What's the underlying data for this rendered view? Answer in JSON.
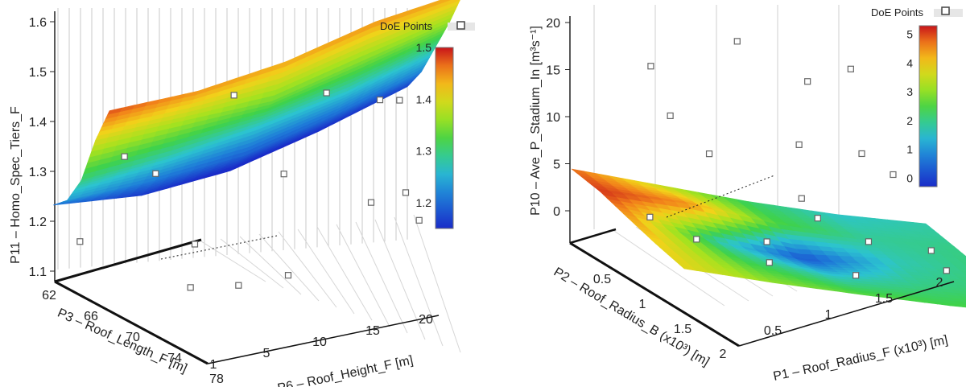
{
  "chart_data": [
    {
      "type": "surface3d",
      "zlabel": "P11 – Homo_Spec_Tiers_F",
      "xlabel": "P3 – Roof_Length_F [m]",
      "ylabel": "P6 – Roof_Height_F [m]",
      "z_ticks": [
        "1.1",
        "1.2",
        "1.3",
        "1.4",
        "1.5",
        "1.6"
      ],
      "x_ticks": [
        "62",
        "66",
        "70",
        "74",
        "78"
      ],
      "y_ticks": [
        "1",
        "5",
        "10",
        "15",
        "20"
      ],
      "zlim": [
        1.05,
        1.6
      ],
      "xlim": [
        62,
        80
      ],
      "ylim": [
        1,
        21
      ],
      "legend": {
        "label": "DoE Points",
        "position": "top-right"
      },
      "colorbar": {
        "ticks": [
          "1.2",
          "1.3",
          "1.4",
          "1.5"
        ],
        "min": 1.15,
        "max": 1.5
      },
      "surface_grid": {
        "x": [
          62,
          66,
          70,
          74,
          78
        ],
        "y": [
          1,
          5,
          10,
          15,
          20
        ],
        "z": [
          [
            1.21,
            1.24,
            1.3,
            1.4,
            1.48
          ],
          [
            1.16,
            1.21,
            1.28,
            1.37,
            1.45
          ],
          [
            1.14,
            1.19,
            1.27,
            1.34,
            1.44
          ],
          [
            1.15,
            1.2,
            1.27,
            1.35,
            1.45
          ],
          [
            1.17,
            1.22,
            1.29,
            1.36,
            1.44
          ]
        ]
      },
      "doe_points": [
        {
          "x": 63,
          "y": 2,
          "z": 1.16
        },
        {
          "x": 67,
          "y": 4,
          "z": 1.33
        },
        {
          "x": 66,
          "y": 6,
          "z": 1.3
        },
        {
          "x": 70,
          "y": 10,
          "z": 1.46
        },
        {
          "x": 73,
          "y": 15,
          "z": 1.47
        },
        {
          "x": 76,
          "y": 12,
          "z": 1.3
        },
        {
          "x": 77,
          "y": 17,
          "z": 1.25
        },
        {
          "x": 74,
          "y": 18,
          "z": 1.46
        },
        {
          "x": 75,
          "y": 19,
          "z": 1.46
        },
        {
          "x": 68,
          "y": 8,
          "z": 1.16
        },
        {
          "x": 65,
          "y": 14,
          "z": 1.11
        },
        {
          "x": 71,
          "y": 20,
          "z": 1.28
        },
        {
          "x": 76,
          "y": 20,
          "z": 1.22
        },
        {
          "x": 78,
          "y": 9,
          "z": 1.07
        },
        {
          "x": 79,
          "y": 6,
          "z": 1.06
        }
      ]
    },
    {
      "type": "surface3d",
      "zlabel": "P10 – Ave_P_Stadium_In [m³s⁻¹]",
      "xlabel": "P2 – Roof_Radius_B (x10³) [m]",
      "ylabel": "P1 – Roof_Radius_F (x10³) [m]",
      "z_ticks": [
        "0",
        "5",
        "10",
        "15",
        "20"
      ],
      "x_ticks": [
        "0.5",
        "1",
        "1.5",
        "2"
      ],
      "y_ticks": [
        "0.5",
        "1",
        "1.5",
        "2"
      ],
      "zlim": [
        -2,
        20
      ],
      "xlim": [
        0.2,
        2.1
      ],
      "ylim": [
        0.2,
        2.1
      ],
      "legend": {
        "label": "DoE Points",
        "position": "top-right"
      },
      "colorbar": {
        "ticks": [
          "0",
          "1",
          "2",
          "3",
          "4",
          "5"
        ],
        "min": -0.3,
        "max": 5.3
      },
      "surface_grid": {
        "x": [
          0.3,
          0.75,
          1.2,
          1.65,
          2.1
        ],
        "y": [
          0.3,
          0.75,
          1.2,
          1.65,
          2.1
        ],
        "z": [
          [
            4.8,
            5.1,
            4.5,
            4.0,
            3.8
          ],
          [
            3.5,
            4.6,
            1.8,
            2.4,
            3.0
          ],
          [
            2.2,
            2.5,
            0.2,
            1.6,
            2.6
          ],
          [
            1.6,
            1.9,
            1.7,
            2.0,
            2.4
          ],
          [
            1.8,
            2.0,
            2.1,
            2.2,
            2.6
          ]
        ]
      },
      "doe_points": [
        {
          "x": 0.3,
          "y": 0.6,
          "z": 15.5
        },
        {
          "x": 0.4,
          "y": 0.7,
          "z": 10.5
        },
        {
          "x": 0.5,
          "y": 1.2,
          "z": 18.5
        },
        {
          "x": 0.6,
          "y": 0.9,
          "z": 7.0
        },
        {
          "x": 0.8,
          "y": 1.6,
          "z": 15.0
        },
        {
          "x": 0.9,
          "y": 1.9,
          "z": 16.5
        },
        {
          "x": 1.0,
          "y": 1.4,
          "z": 9.0
        },
        {
          "x": 1.2,
          "y": 1.8,
          "z": 8.5
        },
        {
          "x": 1.3,
          "y": 2.0,
          "z": 6.5
        },
        {
          "x": 1.5,
          "y": 1.1,
          "z": 5.0
        },
        {
          "x": 0.6,
          "y": 0.4,
          "z": 0.5
        },
        {
          "x": 0.9,
          "y": 0.6,
          "z": -1.0
        },
        {
          "x": 1.2,
          "y": 1.0,
          "z": -0.5
        },
        {
          "x": 1.4,
          "y": 1.3,
          "z": 2.5
        },
        {
          "x": 1.6,
          "y": 1.6,
          "z": 0.5
        },
        {
          "x": 1.8,
          "y": 2.0,
          "z": 0.0
        },
        {
          "x": 2.0,
          "y": 2.0,
          "z": -1.5
        },
        {
          "x": 1.7,
          "y": 0.7,
          "z": -1.0
        },
        {
          "x": 1.9,
          "y": 1.3,
          "z": -2.0
        }
      ]
    }
  ]
}
